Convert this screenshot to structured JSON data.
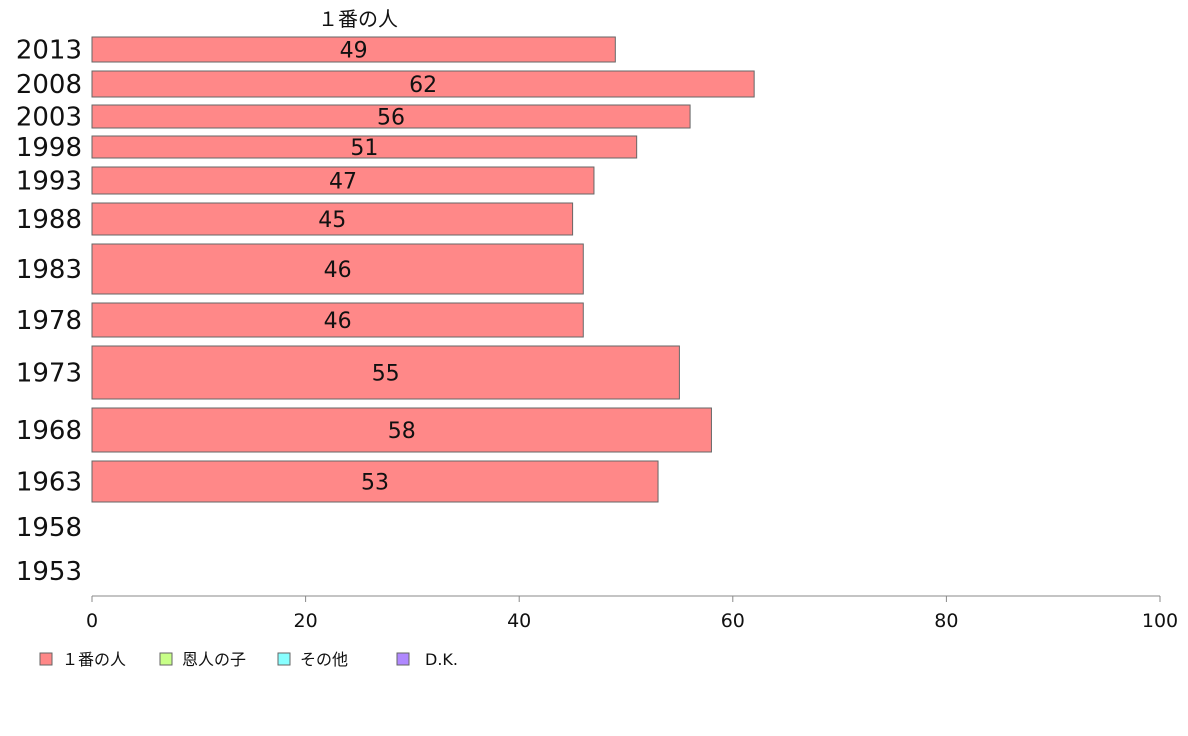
{
  "chart_data": {
    "type": "bar",
    "orientation": "horizontal",
    "title": "",
    "column_header": "１番の人",
    "categories": [
      "2013",
      "2008",
      "2003",
      "1998",
      "1993",
      "1988",
      "1983",
      "1978",
      "1973",
      "1968",
      "1963",
      "1958",
      "1953"
    ],
    "series": [
      {
        "name": "１番の人",
        "color": "#ff8888",
        "values": [
          49,
          62,
          56,
          51,
          47,
          45,
          46,
          46,
          55,
          58,
          53,
          null,
          null
        ]
      },
      {
        "name": "恩人の子",
        "color": "#c8ff88",
        "values": [
          null,
          null,
          null,
          null,
          null,
          null,
          null,
          null,
          null,
          null,
          null,
          null,
          null
        ]
      },
      {
        "name": "その他",
        "color": "#88ffff",
        "values": [
          null,
          null,
          null,
          null,
          null,
          null,
          null,
          null,
          null,
          null,
          null,
          null,
          null
        ]
      },
      {
        "name": "D.K.",
        "color": "#b088ff",
        "values": [
          null,
          null,
          null,
          null,
          null,
          null,
          null,
          null,
          null,
          null,
          null,
          null,
          null
        ]
      }
    ],
    "value_labels": [
      "49",
      "62",
      "56",
      "51",
      "47",
      "45",
      "46",
      "46",
      "55",
      "58",
      "53",
      "",
      ""
    ],
    "xlim": [
      0,
      100
    ],
    "xticks": [
      0,
      20,
      40,
      60,
      80,
      100
    ],
    "xlabel": "",
    "ylabel": "",
    "grid": false,
    "legend_position": "bottom-left"
  }
}
